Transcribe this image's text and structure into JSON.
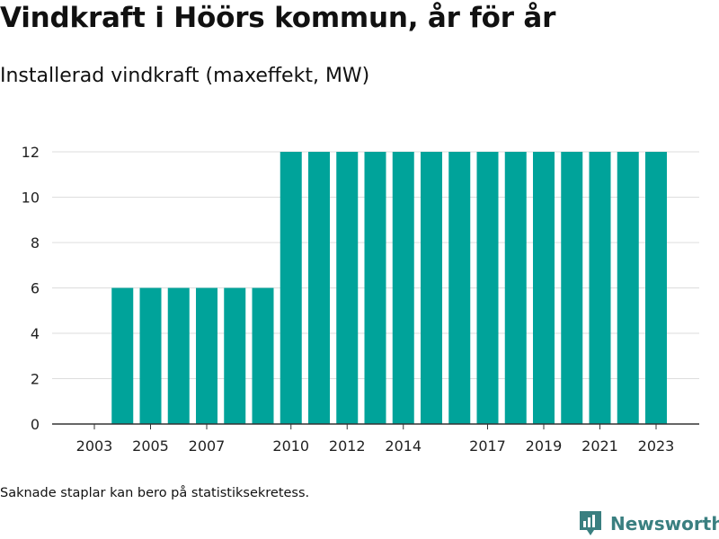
{
  "header": {
    "title": "Vindkraft i Höörs kommun, år för år",
    "subtitle": "Installerad vindkraft (maxeffekt, MW)"
  },
  "footer": {
    "note": "Saknade staplar kan bero på statistiksekretess.",
    "brand": "Newsworthy"
  },
  "colors": {
    "bar": "#00a39a",
    "grid": "#dddddd",
    "axis": "#333333",
    "brand": "#3a7f80"
  },
  "chart_data": {
    "type": "bar",
    "title": "Vindkraft i Höörs kommun, år för år",
    "subtitle": "Installerad vindkraft (maxeffekt, MW)",
    "xlabel": "",
    "ylabel": "",
    "ylim": [
      0,
      12
    ],
    "yticks": [
      0,
      2,
      4,
      6,
      8,
      10,
      12
    ],
    "grid": true,
    "categories": [
      "2003",
      "2004",
      "2005",
      "2006",
      "2007",
      "2008",
      "2009",
      "2010",
      "2011",
      "2012",
      "2013",
      "2014",
      "2015",
      "2016",
      "2017",
      "2018",
      "2019",
      "2020",
      "2021",
      "2022",
      "2023"
    ],
    "values": [
      null,
      6,
      6,
      6,
      6,
      6,
      6,
      12,
      12,
      12,
      12,
      12,
      12,
      12,
      12,
      12,
      12,
      12,
      12,
      12,
      12
    ],
    "xtick_labels": [
      "2003",
      "2005",
      "2007",
      "2010",
      "2012",
      "2014",
      "2017",
      "2019",
      "2021",
      "2023"
    ]
  }
}
